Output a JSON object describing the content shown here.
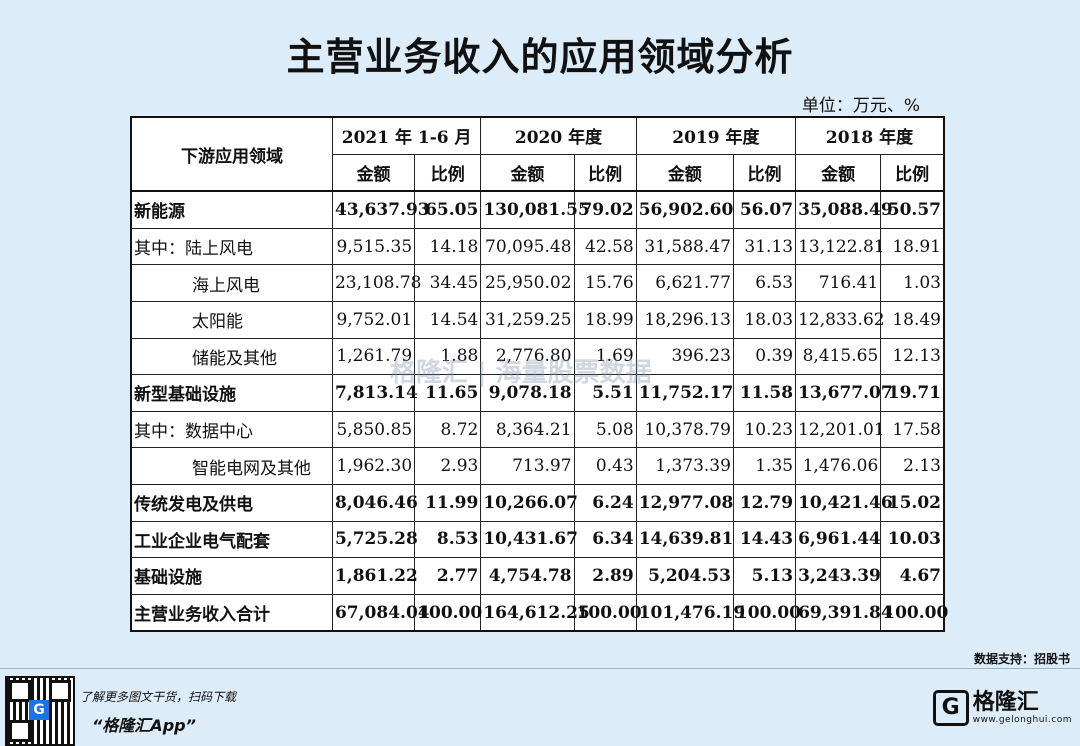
{
  "title": "主营业务收入的应用领域分析",
  "unit": "单位：万元、%",
  "header": {
    "field": "下游应用领域",
    "periods": [
      "2021 年 1-6 月",
      "2020 年度",
      "2019 年度",
      "2018 年度"
    ],
    "amount": "金额",
    "ratio": "比例"
  },
  "rows": [
    {
      "label": "新能源",
      "style": "bold",
      "values": [
        "43,637.93",
        "65.05",
        "130,081.55",
        "79.02",
        "56,902.60",
        "56.07",
        "35,088.49",
        "50.57"
      ]
    },
    {
      "label": "其中：陆上风电",
      "style": "prefix",
      "values": [
        "9,515.35",
        "14.18",
        "70,095.48",
        "42.58",
        "31,588.47",
        "31.13",
        "13,122.81",
        "18.91"
      ]
    },
    {
      "label": "海上风电",
      "style": "indent",
      "values": [
        "23,108.78",
        "34.45",
        "25,950.02",
        "15.76",
        "6,621.77",
        "6.53",
        "716.41",
        "1.03"
      ]
    },
    {
      "label": "太阳能",
      "style": "indent",
      "values": [
        "9,752.01",
        "14.54",
        "31,259.25",
        "18.99",
        "18,296.13",
        "18.03",
        "12,833.62",
        "18.49"
      ]
    },
    {
      "label": "储能及其他",
      "style": "indent",
      "values": [
        "1,261.79",
        "1.88",
        "2,776.80",
        "1.69",
        "396.23",
        "0.39",
        "8,415.65",
        "12.13"
      ]
    },
    {
      "label": "新型基础设施",
      "style": "bold",
      "values": [
        "7,813.14",
        "11.65",
        "9,078.18",
        "5.51",
        "11,752.17",
        "11.58",
        "13,677.07",
        "19.71"
      ]
    },
    {
      "label": "其中：数据中心",
      "style": "prefix",
      "values": [
        "5,850.85",
        "8.72",
        "8,364.21",
        "5.08",
        "10,378.79",
        "10.23",
        "12,201.01",
        "17.58"
      ]
    },
    {
      "label": "智能电网及其他",
      "style": "indent",
      "values": [
        "1,962.30",
        "2.93",
        "713.97",
        "0.43",
        "1,373.39",
        "1.35",
        "1,476.06",
        "2.13"
      ]
    },
    {
      "label": "传统发电及供电",
      "style": "bold",
      "values": [
        "8,046.46",
        "11.99",
        "10,266.07",
        "6.24",
        "12,977.08",
        "12.79",
        "10,421.46",
        "15.02"
      ]
    },
    {
      "label": "工业企业电气配套",
      "style": "bold",
      "values": [
        "5,725.28",
        "8.53",
        "10,431.67",
        "6.34",
        "14,639.81",
        "14.43",
        "6,961.44",
        "10.03"
      ]
    },
    {
      "label": "基础设施",
      "style": "bold",
      "values": [
        "1,861.22",
        "2.77",
        "4,754.78",
        "2.89",
        "5,204.53",
        "5.13",
        "3,243.39",
        "4.67"
      ]
    },
    {
      "label": "主营业务收入合计",
      "style": "bold",
      "values": [
        "67,084.04",
        "100.00",
        "164,612.25",
        "100.00",
        "101,476.19",
        "100.00",
        "69,391.84",
        "100.00"
      ]
    }
  ],
  "source": "数据支持：招股书",
  "footer": {
    "promo_line": "了解更多图文干货，扫码下载",
    "app_name": "“格隆汇App”",
    "brand_name": "格隆汇",
    "brand_url": "www.gelonghui.com",
    "qr_badge": "G",
    "logo_letter": "G"
  },
  "watermark": "格隆汇 | 海量股票数据"
}
